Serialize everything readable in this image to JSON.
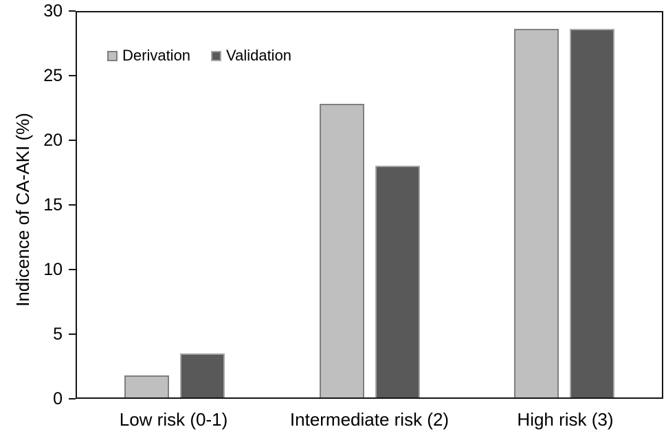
{
  "chart_data": {
    "type": "bar",
    "title": "",
    "xlabel": "",
    "ylabel": "Indicence of CA-AKI (%)",
    "categories": [
      "Low risk (0-1)",
      "Intermediate risk (2)",
      "High risk (3)"
    ],
    "series": [
      {
        "name": "Derivation",
        "fill_color": "#bfbfbf",
        "border_color": "#7f7f7f",
        "values": [
          1.7,
          22.8,
          28.6
        ]
      },
      {
        "name": "Validation",
        "fill_color": "#595959",
        "border_color": "#a6a6a6",
        "values": [
          3.4,
          18.0,
          28.6
        ]
      }
    ],
    "ylim": [
      0,
      30
    ],
    "yticks": [
      0,
      5,
      10,
      15,
      20,
      25,
      30
    ],
    "grid": false,
    "legend_position": "top-left-inside",
    "axis_color": "#151515",
    "text_color": "#000000"
  }
}
